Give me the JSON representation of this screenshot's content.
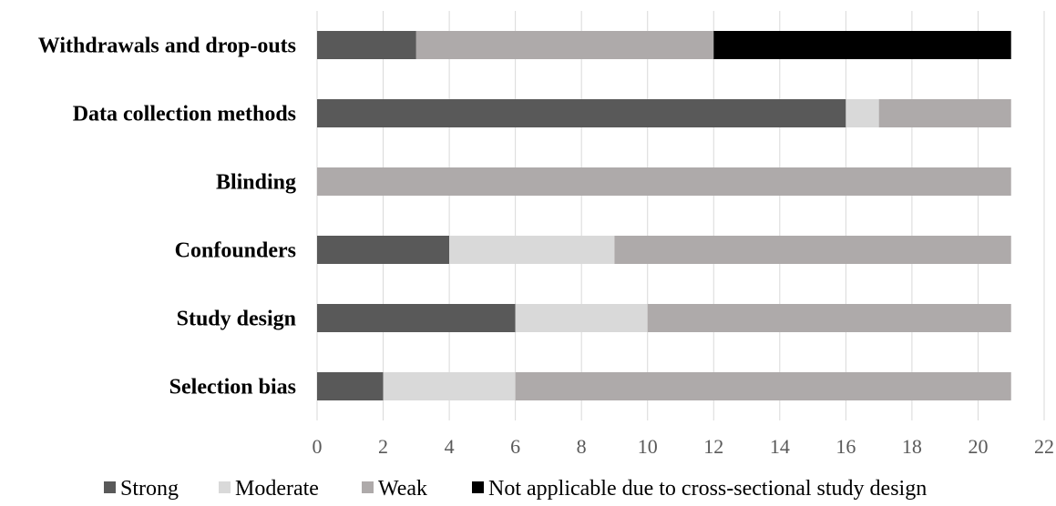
{
  "chart_data": {
    "type": "bar",
    "orientation": "horizontal",
    "stacked": true,
    "categories": [
      "Selection bias",
      "Study design",
      "Confounders",
      "Blinding",
      "Data collection methods",
      "Withdrawals and drop-outs"
    ],
    "series": [
      {
        "name": "Strong",
        "color": "#595959",
        "values": [
          2,
          6,
          4,
          0,
          16,
          3
        ]
      },
      {
        "name": "Moderate",
        "color": "#d9d9d9",
        "values": [
          4,
          4,
          5,
          0,
          1,
          0
        ]
      },
      {
        "name": "Weak",
        "color": "#aeaaaa",
        "values": [
          15,
          11,
          12,
          21,
          4,
          9
        ]
      },
      {
        "name": "Not applicable due to cross-sectional study design",
        "color": "#000000",
        "values": [
          0,
          0,
          0,
          0,
          0,
          9
        ]
      }
    ],
    "xlim": [
      0,
      22
    ],
    "xticks": [
      0,
      2,
      4,
      6,
      8,
      10,
      12,
      14,
      16,
      18,
      20,
      22
    ],
    "grid": true,
    "legend_position": "bottom"
  }
}
